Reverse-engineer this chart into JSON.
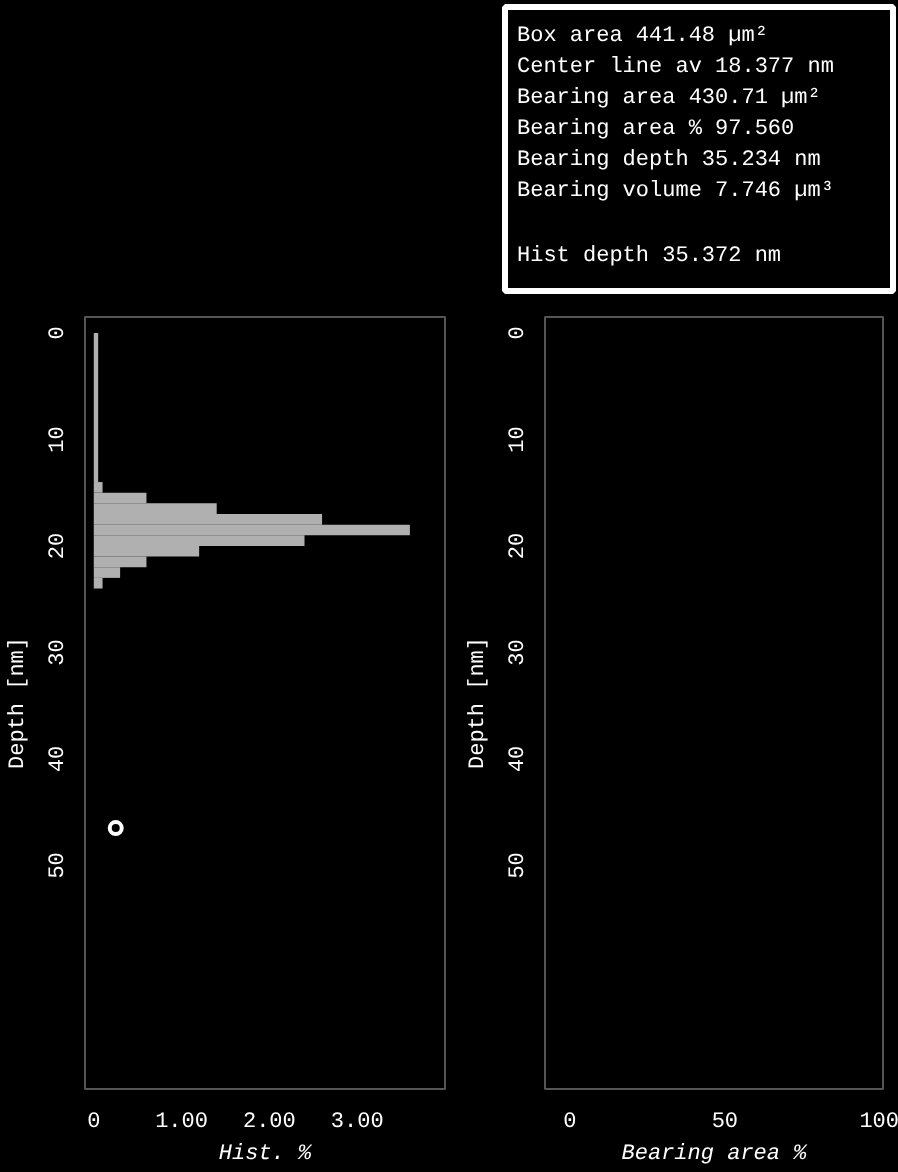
{
  "chart_data": [
    {
      "type": "other",
      "annotations": [
        "Box area         441.48 µm²",
        "Center line av 18.377 nm",
        "Bearing area     430.71 µm²",
        "Bearing area % 97.560",
        "Bearing depth  35.234 nm",
        "Bearing volume 7.746 µm³",
        "Hist depth        35.372 nm"
      ]
    },
    {
      "type": "histogram",
      "orientation": "horizontal",
      "xlabel": "Hist. %",
      "ylabel": "Depth [nm]",
      "bins": [
        0,
        14,
        15,
        16,
        17,
        18,
        19,
        20,
        21,
        22,
        23,
        24
      ],
      "values": [
        0.05,
        0.1,
        0.6,
        1.4,
        2.6,
        3.6,
        2.4,
        1.2,
        0.6,
        0.3,
        0.1
      ],
      "color": "#b0b0b0",
      "series": [
        {
          "type": "scatter",
          "x": [
            46.5
          ],
          "values": [
            0.25
          ],
          "color": "#ffffff"
        }
      ],
      "marker": "circle",
      "xlim": [
        -0.1,
        4.0
      ],
      "xticks": [
        0,
        {
          "value": 1,
          "label": "1.00"
        },
        {
          "value": 2,
          "label": "2.00"
        },
        {
          "value": 3,
          "label": "3.00"
        }
      ],
      "ylim": [
        71,
        -1.5
      ],
      "yticks": [
        0,
        10,
        20,
        30,
        40,
        50
      ]
    },
    {
      "type": "line",
      "xlabel": "Bearing area %",
      "ylabel": "Depth [nm]",
      "xlim": [
        -8,
        101
      ],
      "xticks": [
        0,
        50,
        100
      ],
      "ylim": [
        71,
        -1.5
      ],
      "yticks": [
        0,
        10,
        20,
        30,
        40,
        50
      ]
    }
  ]
}
